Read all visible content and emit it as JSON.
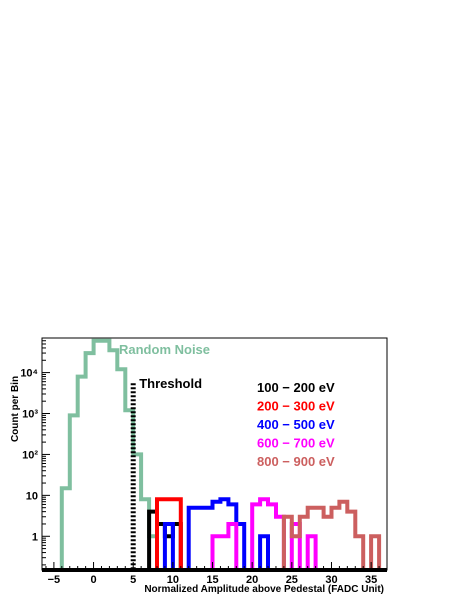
{
  "chart_data": {
    "type": "histogram",
    "xlabel": "Normalized Amplitude above Pedestal (FADC Unit)",
    "ylabel": "Count per Bin",
    "xlim": [
      -6.5,
      37
    ],
    "ylim": [
      0.15,
      70000
    ],
    "y_scale": "log",
    "bin_width": 1,
    "x_ticks": [
      -5,
      0,
      5,
      10,
      15,
      20,
      25,
      30,
      35
    ],
    "y_ticks": [
      {
        "value": 1,
        "label": "1"
      },
      {
        "value": 10,
        "label": "10"
      },
      {
        "value": 100,
        "label": "10²"
      },
      {
        "value": 1000,
        "label": "10³"
      },
      {
        "value": 10000,
        "label": "10⁴"
      }
    ],
    "threshold": {
      "label": "Threshold",
      "x": 5,
      "y_top": 5500
    },
    "noise_label": "Random Noise",
    "series": [
      {
        "name": "Random Noise",
        "color": "#7fbf9f",
        "bin_start": -5,
        "values": [
          0.15,
          15,
          900,
          8000,
          30000,
          60000,
          60000,
          35000,
          12000,
          1200,
          100,
          8,
          1,
          0.15
        ]
      },
      {
        "name": "100 - 200 eV",
        "color": "#000000",
        "bin_start": 6,
        "values": [
          0.15,
          4,
          2,
          1,
          2,
          0.15
        ]
      },
      {
        "name": "200 - 300 eV",
        "color": "#ff0000",
        "bin_start": 7,
        "values": [
          0.15,
          8,
          8,
          8,
          0.15
        ]
      },
      {
        "name": "400 - 500 eV",
        "color": "#0000ff",
        "bin_start": 8,
        "values": [
          0.15,
          2,
          0.15,
          0.15,
          5,
          5,
          5,
          7,
          8,
          6,
          2,
          0.15,
          0.15,
          1,
          0.15
        ]
      },
      {
        "name": "600 - 700 eV",
        "color": "#ff00ff",
        "bin_start": 14,
        "values": [
          0.15,
          1,
          1,
          2,
          0.15,
          0.15,
          6,
          8,
          6,
          3,
          0.15,
          2,
          0.15,
          1,
          0.15
        ]
      },
      {
        "name": "800 - 900 eV",
        "color": "#cc5f5f",
        "bin_start": 23,
        "values": [
          0.15,
          3,
          1,
          3,
          5,
          5,
          3,
          5,
          7,
          4,
          1,
          0.15,
          1,
          0.15
        ]
      }
    ],
    "legend": {
      "placement": "right-center",
      "entries": [
        {
          "label": "100 − 200 eV",
          "color": "#000000"
        },
        {
          "label": "200 − 300 eV",
          "color": "#ff0000"
        },
        {
          "label": "400 − 500 eV",
          "color": "#0000ff"
        },
        {
          "label": "600 − 700 eV",
          "color": "#ff00ff"
        },
        {
          "label": "800 − 900 eV",
          "color": "#cc5f5f"
        }
      ]
    }
  }
}
